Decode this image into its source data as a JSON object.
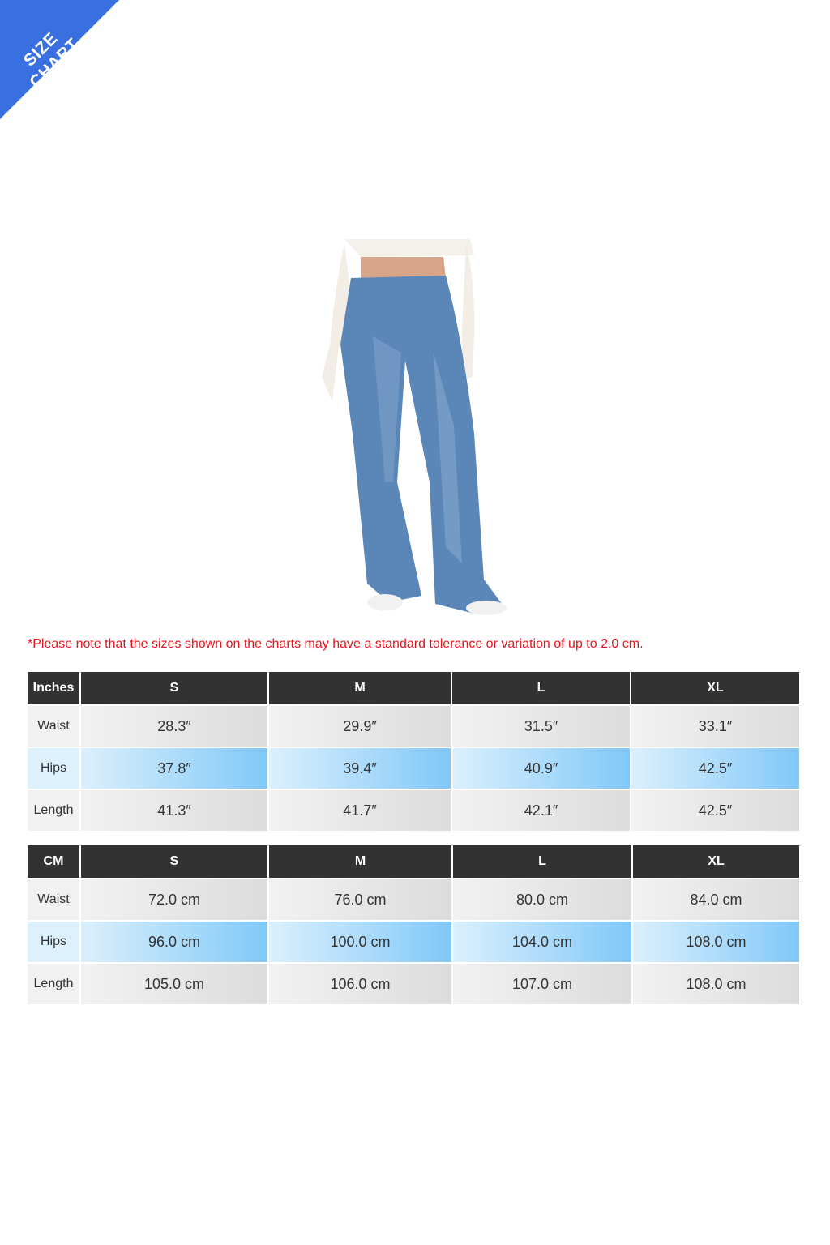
{
  "banner": {
    "text": "SIZE CHART",
    "color": "#3a6fe0"
  },
  "note": "*Please note that the sizes shown on the charts may have a standard tolerance or variation of up to 2.0 cm.",
  "tables": [
    {
      "unit": "Inches",
      "sizes": [
        "S",
        "M",
        "L",
        "XL"
      ],
      "rows": [
        {
          "label": "Waist",
          "values": [
            "28.3″",
            "29.9″",
            "31.5″",
            "33.1″"
          ]
        },
        {
          "label": "Hips",
          "values": [
            "37.8″",
            "39.4″",
            "40.9″",
            "42.5″"
          ]
        },
        {
          "label": "Length",
          "values": [
            "41.3″",
            "41.7″",
            "42.1″",
            "42.5″"
          ]
        }
      ]
    },
    {
      "unit": "CM",
      "sizes": [
        "S",
        "M",
        "L",
        "XL"
      ],
      "rows": [
        {
          "label": "Waist",
          "values": [
            "72.0 cm",
            "76.0 cm",
            "80.0 cm",
            "84.0 cm"
          ]
        },
        {
          "label": "Hips",
          "values": [
            "96.0 cm",
            "100.0 cm",
            "104.0 cm",
            "108.0 cm"
          ]
        },
        {
          "label": "Length",
          "values": [
            "105.0 cm",
            "106.0 cm",
            "107.0 cm",
            "108.0 cm"
          ]
        }
      ]
    }
  ]
}
